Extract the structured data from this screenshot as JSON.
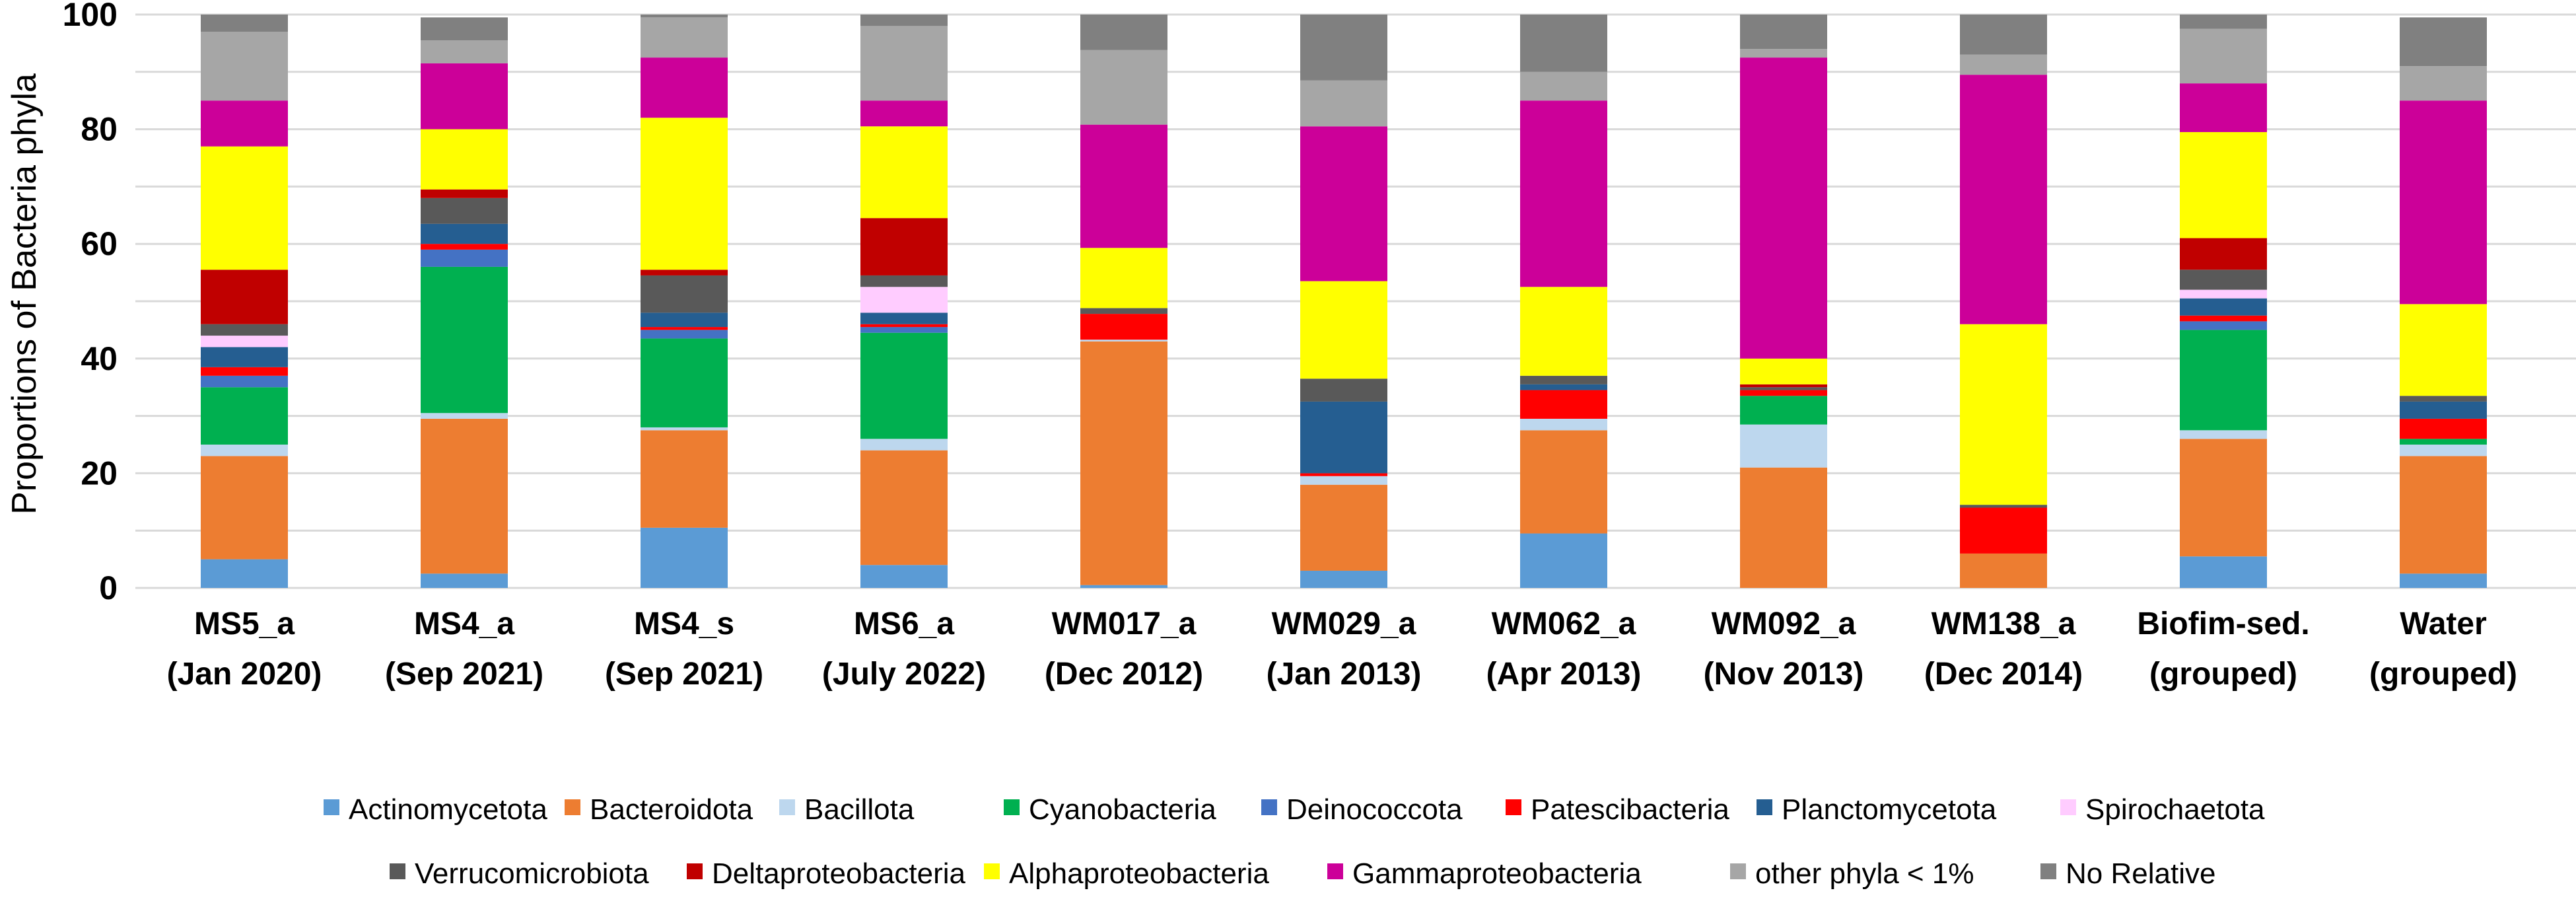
{
  "chart_data": {
    "type": "bar",
    "stacked": true,
    "title": "",
    "xlabel": "",
    "ylabel": "Proportions of Bacteria phyla",
    "ylim": [
      0,
      100
    ],
    "yticks": [
      0,
      20,
      40,
      60,
      80,
      100
    ],
    "grid": true,
    "legend_position": "bottom",
    "categories": [
      [
        "MS5_a",
        "(Jan 2020)"
      ],
      [
        "MS4_a",
        "(Sep 2021)"
      ],
      [
        "MS4_s",
        "(Sep 2021)"
      ],
      [
        "MS6_a",
        "(July 2022)"
      ],
      [
        "WM017_a",
        "(Dec 2012)"
      ],
      [
        "WM029_a",
        "(Jan 2013)"
      ],
      [
        "WM062_a",
        "(Apr 2013)"
      ],
      [
        "WM092_a",
        "(Nov 2013)"
      ],
      [
        "WM138_a",
        "(Dec 2014)"
      ],
      [
        "Biofim-sed.",
        "(grouped)"
      ],
      [
        "Water",
        "(grouped)"
      ]
    ],
    "series": [
      {
        "name": "Actinomycetota",
        "color": "#5b9bd5",
        "values": [
          5,
          2.5,
          10.5,
          4,
          0.5,
          3,
          9.5,
          0,
          0,
          5.5,
          2.5
        ]
      },
      {
        "name": "Bacteroidota",
        "color": "#ed7d31",
        "values": [
          18,
          27,
          17,
          20,
          42.5,
          15,
          18,
          21,
          6,
          20.5,
          20.5
        ]
      },
      {
        "name": "Bacillota",
        "color": "#bdd7ee",
        "values": [
          2,
          1,
          0.5,
          2,
          0.3,
          1.5,
          2,
          7.5,
          0,
          1.5,
          2
        ]
      },
      {
        "name": "Cyanobacteria",
        "color": "#00b050",
        "values": [
          10,
          25.5,
          15.5,
          18.5,
          0,
          0,
          0,
          5,
          0,
          17.5,
          1
        ]
      },
      {
        "name": "Deinococcota",
        "color": "#4472c4",
        "values": [
          2,
          3,
          1.5,
          1,
          0,
          0,
          0,
          0,
          0,
          1.5,
          0
        ]
      },
      {
        "name": "Patescibacteria",
        "color": "#ff0000",
        "values": [
          1.5,
          1,
          0.5,
          0.5,
          4.5,
          0.5,
          5,
          1,
          8,
          1,
          3.5
        ]
      },
      {
        "name": "Planctomycetota",
        "color": "#255e91",
        "values": [
          3.5,
          3.5,
          2.5,
          2,
          0,
          12.5,
          1,
          0,
          0,
          3,
          3
        ]
      },
      {
        "name": "Spirochaetota",
        "color": "#ffccff",
        "values": [
          2,
          0,
          0,
          4.5,
          0,
          0,
          0,
          0,
          0,
          1.5,
          0
        ]
      },
      {
        "name": "Verrucomicrobiota",
        "color": "#595959",
        "values": [
          2,
          4.5,
          6.5,
          2,
          1,
          4,
          1.5,
          0.5,
          0.5,
          3.5,
          1
        ]
      },
      {
        "name": "Deltaproteobacteria",
        "color": "#c00000",
        "values": [
          9.5,
          1.5,
          1,
          10,
          0,
          0,
          0,
          0.5,
          0,
          5.5,
          0
        ]
      },
      {
        "name": "Alphaproteobacteria",
        "color": "#ffff00",
        "values": [
          21.5,
          10.5,
          26.5,
          16,
          10.5,
          17,
          15.5,
          4.5,
          31.5,
          18.5,
          16
        ]
      },
      {
        "name": "Gammaproteobacteria",
        "color": "#cc0099",
        "values": [
          8,
          11.5,
          10.5,
          4.5,
          21.5,
          27,
          32.5,
          52.5,
          43.5,
          8.5,
          35.5
        ]
      },
      {
        "name": "other phyla < 1%",
        "color": "#a6a6a6",
        "values": [
          12,
          4,
          7,
          13,
          13,
          8,
          5,
          1.5,
          3.5,
          9.5,
          6
        ]
      },
      {
        "name": "No Relative",
        "color": "#808080",
        "values": [
          3,
          4,
          1,
          2,
          6.5,
          12,
          10,
          7.5,
          7,
          2.5,
          8.5
        ]
      }
    ]
  }
}
